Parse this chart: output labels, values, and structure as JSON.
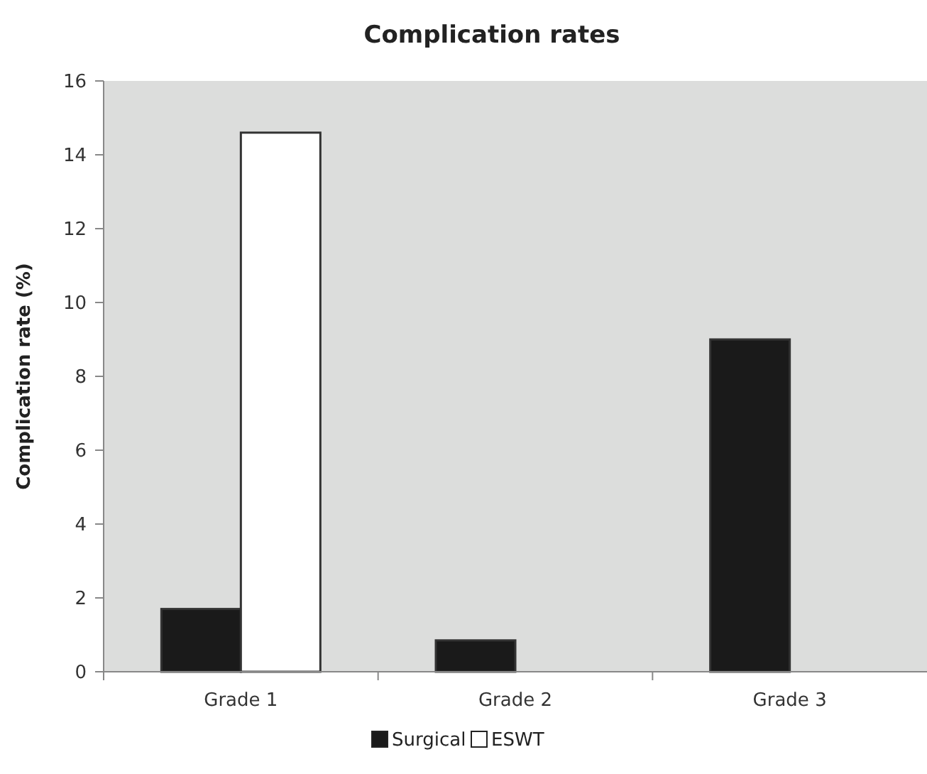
{
  "chart_data": {
    "type": "bar",
    "title": "Complication rates",
    "ylabel": "Complication rate (%)",
    "categories": [
      "Grade 1",
      "Grade 2",
      "Grade 3"
    ],
    "series": [
      {
        "name": "Surgical",
        "color": "#1a1a1a",
        "values": [
          1.7,
          0.85,
          9.0
        ]
      },
      {
        "name": "ESWT",
        "color": "#ffffff",
        "values": [
          14.6,
          0,
          0
        ]
      }
    ],
    "ylim": [
      0,
      16
    ],
    "yticks": [
      0,
      2,
      4,
      6,
      8,
      10,
      12,
      14,
      16
    ],
    "grid": false,
    "legend": "bottom"
  }
}
